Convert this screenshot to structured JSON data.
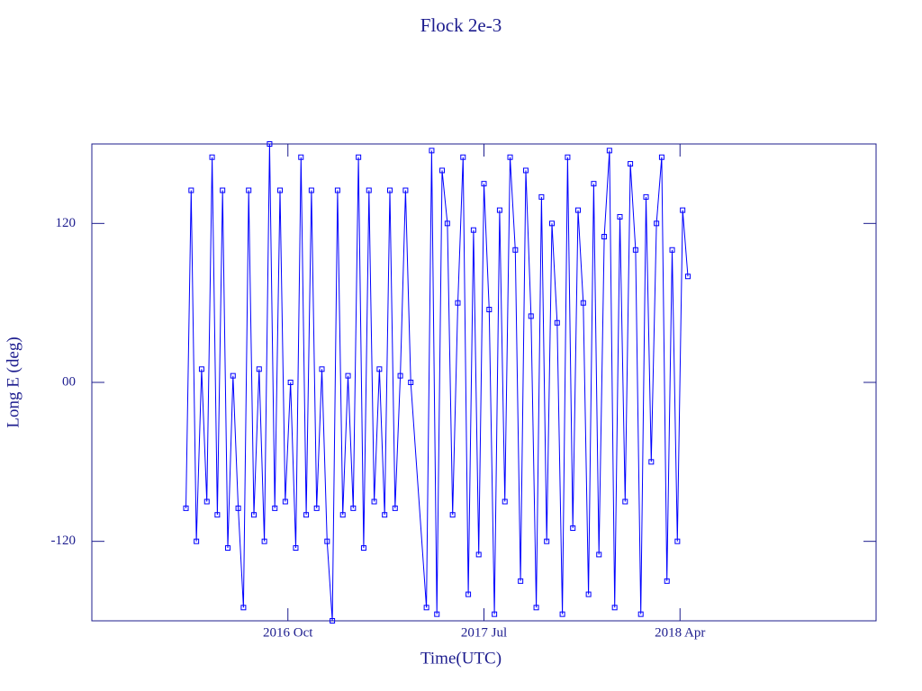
{
  "chart_data": {
    "type": "line",
    "title": "Flock 2e-3",
    "x_label": "Time(UTC)",
    "y_label": "Long E (deg)",
    "xlim": [
      2016.0,
      2019.0
    ],
    "xticks": [
      {
        "value": 2016.75,
        "label": "2016 Oct"
      },
      {
        "value": 2017.5,
        "label": "2017 Jul"
      },
      {
        "value": 2018.25,
        "label": "2018 Apr"
      }
    ],
    "ylim": [
      -180,
      180
    ],
    "yticks": [
      -120,
      {
        "value": 0,
        "label": "00"
      },
      120
    ],
    "series": [
      {
        "color": "#0000ff",
        "x": [
          2016.36,
          2016.38,
          2016.4,
          2016.42,
          2016.44,
          2016.46,
          2016.48,
          2016.5,
          2016.52,
          2016.54,
          2016.56,
          2016.58,
          2016.6,
          2016.62,
          2016.64,
          2016.66,
          2016.68,
          2016.7,
          2016.72,
          2016.74,
          2016.76,
          2016.78,
          2016.8,
          2016.82,
          2016.84,
          2016.86,
          2016.88,
          2016.9,
          2016.92,
          2016.94,
          2016.96,
          2016.98,
          2017.0,
          2017.02,
          2017.04,
          2017.06,
          2017.08,
          2017.1,
          2017.12,
          2017.14,
          2017.16,
          2017.18,
          2017.2,
          2017.22,
          2017.28,
          2017.3,
          2017.32,
          2017.34,
          2017.36,
          2017.38,
          2017.4,
          2017.42,
          2017.44,
          2017.46,
          2017.48,
          2017.5,
          2017.52,
          2017.54,
          2017.56,
          2017.58,
          2017.6,
          2017.62,
          2017.64,
          2017.66,
          2017.68,
          2017.7,
          2017.72,
          2017.74,
          2017.76,
          2017.78,
          2017.8,
          2017.82,
          2017.84,
          2017.86,
          2017.88,
          2017.9,
          2017.92,
          2017.94,
          2017.96,
          2017.98,
          2018.0,
          2018.02,
          2018.04,
          2018.06,
          2018.08,
          2018.1,
          2018.12,
          2018.14,
          2018.16,
          2018.18,
          2018.2,
          2018.22,
          2018.24,
          2018.26,
          2018.28
        ],
        "values": [
          -95,
          145,
          -120,
          10,
          -90,
          170,
          -100,
          145,
          -125,
          5,
          -95,
          -170,
          145,
          -100,
          10,
          -120,
          180,
          -95,
          145,
          -90,
          0,
          -125,
          170,
          -100,
          145,
          -95,
          10,
          -120,
          -180,
          145,
          -100,
          5,
          -95,
          170,
          -125,
          145,
          -90,
          10,
          -100,
          145,
          -95,
          5,
          145,
          0,
          -170,
          175,
          -175,
          160,
          120,
          -100,
          60,
          170,
          -160,
          115,
          -130,
          150,
          55,
          -175,
          130,
          -90,
          170,
          100,
          -150,
          160,
          50,
          -170,
          140,
          -120,
          120,
          45,
          -175,
          170,
          -110,
          130,
          60,
          -160,
          150,
          -130,
          110,
          175,
          -170,
          125,
          -90,
          165,
          100,
          -175,
          140,
          -60,
          120,
          170,
          -150,
          100,
          -120,
          130,
          80
        ]
      }
    ],
    "grid": false
  }
}
